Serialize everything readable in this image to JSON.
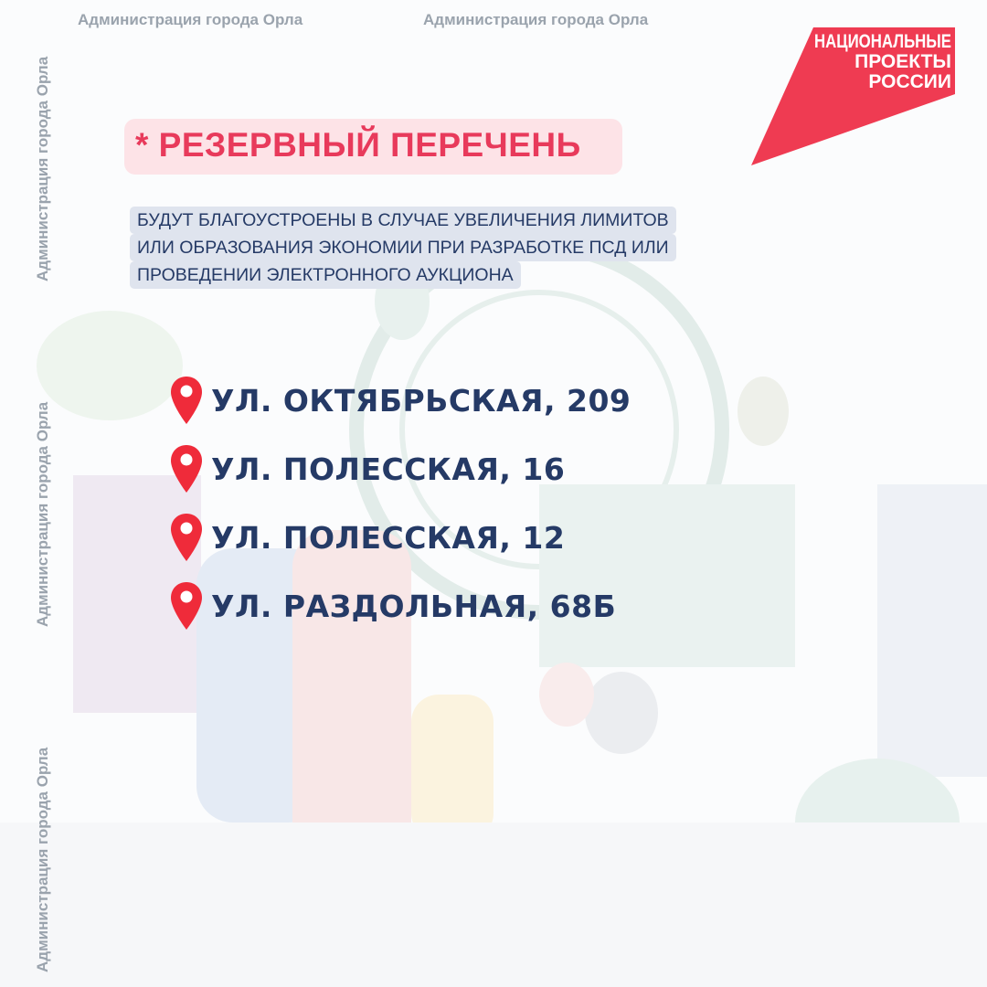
{
  "watermark": "Администрация города Орла",
  "logo": {
    "lines": [
      "НАЦИОНАЛЬНЫЕ",
      "ПРОЕКТЫ",
      "РОССИИ"
    ],
    "color": "#ef3b52"
  },
  "title": "* РЕЗЕРВНЫЙ ПЕРЕЧЕНЬ",
  "subtitle_lines": [
    "БУДУТ БЛАГОУСТРОЕНЫ В СЛУЧАЕ УВЕЛИЧЕНИЯ ЛИМИТОВ",
    "ИЛИ ОБРАЗОВАНИЯ ЭКОНОМИИ ПРИ РАЗРАБОТКЕ ПСД ИЛИ",
    "ПРОВЕДЕНИИ ЭЛЕКТРОННОГО АУКЦИОНА"
  ],
  "addresses": [
    {
      "icon": "map-pin-icon",
      "label": "УЛ. ОКТЯБРЬСКАЯ, 209"
    },
    {
      "icon": "map-pin-icon",
      "label": "УЛ. ПОЛЕССКАЯ, 16"
    },
    {
      "icon": "map-pin-icon",
      "label": "УЛ. ПОЛЕССКАЯ, 12"
    },
    {
      "icon": "map-pin-icon",
      "label": "УЛ. РАЗДОЛЬНАЯ, 68Б"
    }
  ],
  "colors": {
    "accent": "#e83a5b",
    "text": "#253a66",
    "pin": "#ef2b3a"
  }
}
